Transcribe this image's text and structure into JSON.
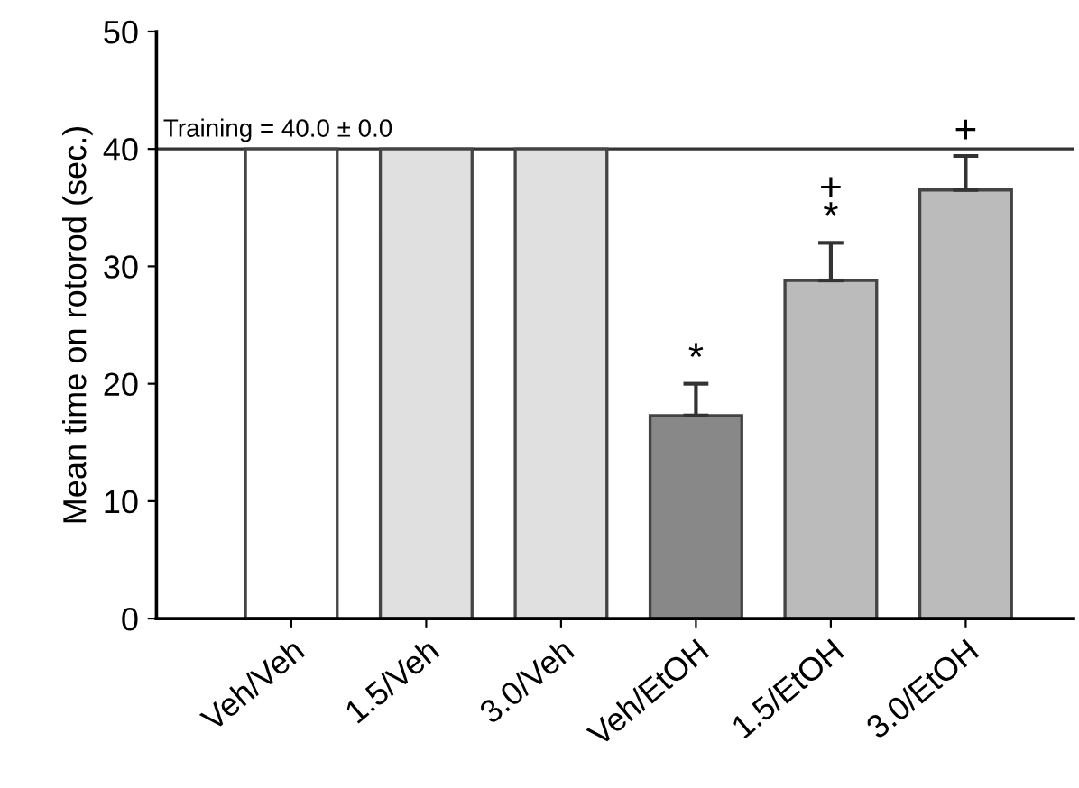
{
  "chart_data": {
    "type": "bar",
    "ylabel": "Mean time on rotorod (sec.)",
    "categories": [
      "Veh/Veh",
      "1.5/Veh",
      "3.0/Veh",
      "Veh/EtOH",
      "1.5/EtOH",
      "3.0/EtOH"
    ],
    "values": [
      40,
      40,
      40,
      17.3,
      28.8,
      36.5
    ],
    "errors": [
      null,
      null,
      null,
      2.7,
      3.2,
      2.9
    ],
    "colors": [
      "#ffffff",
      "#e0e0e0",
      "#e0e0e0",
      "#888888",
      "#bbbbbb",
      "#bbbbbb"
    ],
    "ylim": [
      0,
      50
    ],
    "yticks": [
      0,
      10,
      20,
      30,
      40,
      50
    ],
    "grid": false,
    "ref_lines": [
      {
        "axis": "y",
        "value": 40,
        "label": "Training = 40.0 ± 0.0"
      }
    ],
    "annotations": [
      "*",
      "*",
      "+",
      "+"
    ]
  }
}
